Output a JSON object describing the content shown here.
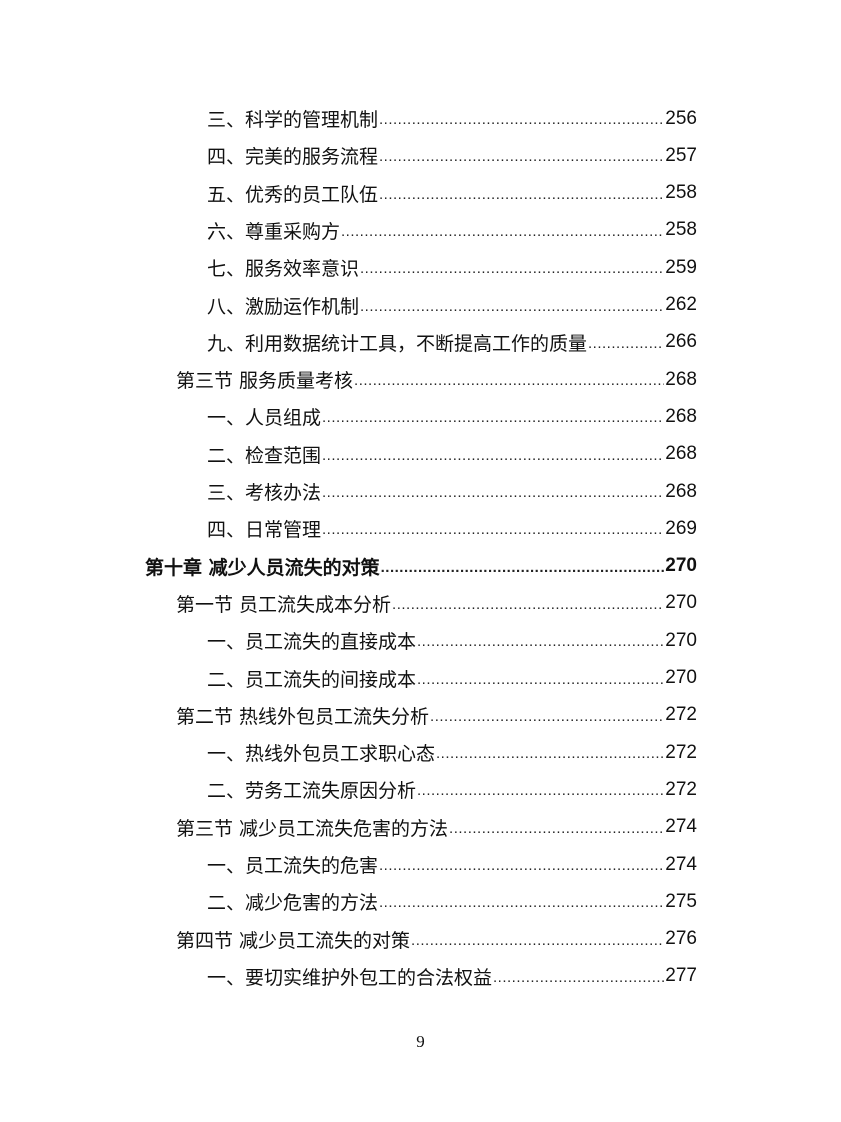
{
  "toc": [
    {
      "level": 3,
      "title": "三、科学的管理机制",
      "page": "256"
    },
    {
      "level": 3,
      "title": "四、完美的服务流程",
      "page": "257"
    },
    {
      "level": 3,
      "title": "五、优秀的员工队伍",
      "page": "258"
    },
    {
      "level": 3,
      "title": "六、尊重采购方",
      "page": "258"
    },
    {
      "level": 3,
      "title": "七、服务效率意识",
      "page": "259"
    },
    {
      "level": 3,
      "title": "八、激励运作机制",
      "page": "262"
    },
    {
      "level": 3,
      "title": "九、利用数据统计工具，不断提高工作的质量",
      "page": "266"
    },
    {
      "level": 2,
      "title": "第三节 服务质量考核",
      "page": "268"
    },
    {
      "level": 3,
      "title": "一、人员组成",
      "page": "268"
    },
    {
      "level": 3,
      "title": "二、检查范围",
      "page": "268"
    },
    {
      "level": 3,
      "title": "三、考核办法",
      "page": "268"
    },
    {
      "level": 3,
      "title": "四、日常管理",
      "page": "269"
    },
    {
      "level": 1,
      "title": "第十章 减少人员流失的对策",
      "page": "270"
    },
    {
      "level": 2,
      "title": "第一节 员工流失成本分析",
      "page": "270"
    },
    {
      "level": 3,
      "title": "一、员工流失的直接成本",
      "page": "270"
    },
    {
      "level": 3,
      "title": "二、员工流失的间接成本",
      "page": "270"
    },
    {
      "level": 2,
      "title": "第二节 热线外包员工流失分析",
      "page": "272"
    },
    {
      "level": 3,
      "title": "一、热线外包员工求职心态",
      "page": "272"
    },
    {
      "level": 3,
      "title": "二、劳务工流失原因分析",
      "page": "272"
    },
    {
      "level": 2,
      "title": "第三节 减少员工流失危害的方法",
      "page": "274"
    },
    {
      "level": 3,
      "title": "一、员工流失的危害",
      "page": "274"
    },
    {
      "level": 3,
      "title": "二、减少危害的方法",
      "page": "275"
    },
    {
      "level": 2,
      "title": "第四节 减少员工流失的对策",
      "page": "276"
    },
    {
      "level": 3,
      "title": "一、要切实维护外包工的合法权益",
      "page": "277"
    }
  ],
  "footer": {
    "page_number": "9"
  }
}
